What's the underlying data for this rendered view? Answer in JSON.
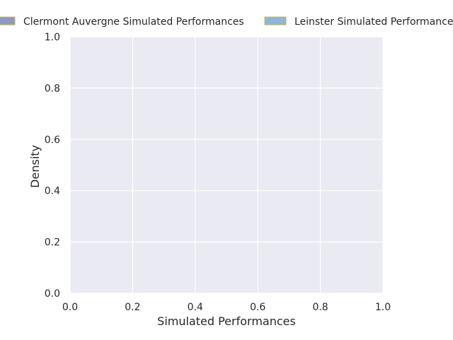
{
  "chart_data": {
    "type": "area",
    "title": "",
    "xlabel": "Simulated Performances",
    "ylabel": "Density",
    "xlim": [
      0.0,
      1.0
    ],
    "ylim": [
      0.0,
      1.0
    ],
    "x_ticks": [
      "0.0",
      "0.2",
      "0.4",
      "0.6",
      "0.8",
      "1.0"
    ],
    "y_ticks": [
      "0.0",
      "0.2",
      "0.4",
      "0.6",
      "0.8",
      "1.0"
    ],
    "grid": true,
    "legend_position": "top",
    "series": [
      {
        "name": "Clermont Auvergne Simulated Performances",
        "color": "#8c9ac2",
        "edge_color": "#c7b44a",
        "values": []
      },
      {
        "name": "Leinster Simulated Performances",
        "color": "#8fb6d9",
        "edge_color": "#c7b44a",
        "values": []
      }
    ],
    "colors": {
      "plot_background": "#eaeaf2",
      "grid": "#ffffff",
      "text": "#262626"
    }
  }
}
